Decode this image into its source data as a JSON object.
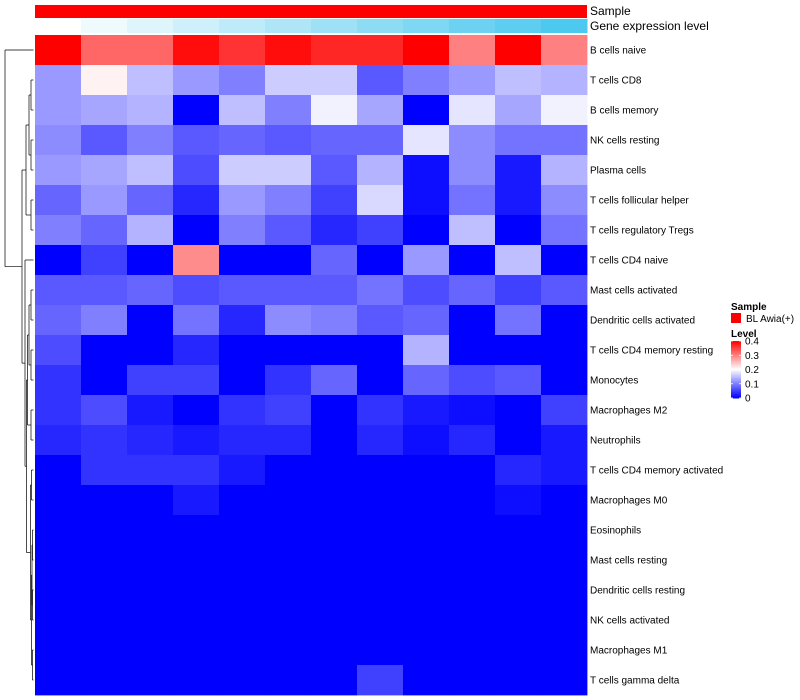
{
  "chart_data": {
    "type": "heatmap",
    "title": "",
    "annotations": [
      {
        "label": "Sample",
        "kind": "categorical",
        "color": "#ff0000"
      },
      {
        "label": "Gene expression level",
        "kind": "gradient",
        "low_color": "#ffffff",
        "high_color": "#4dc8ee"
      }
    ],
    "rows": [
      "B cells naive",
      "T cells CD8",
      "B cells memory",
      "NK cells resting",
      "Plasma cells",
      "T cells follicular helper",
      "T cells regulatory  Tregs",
      "T cells CD4 naive",
      "Mast cells activated",
      "Dendritic cells activated",
      "T cells CD4 memory resting",
      "Monocytes",
      "Macrophages M2",
      "Neutrophils",
      "T cells CD4 memory activated",
      "Macrophages M0",
      "Eosinophils",
      "Mast cells resting",
      "Dendritic cells resting",
      "NK cells activated",
      "Macrophages M1",
      "T cells gamma delta"
    ],
    "n_columns": 12,
    "values": [
      [
        0.4,
        0.32,
        0.32,
        0.39,
        0.36,
        0.39,
        0.37,
        0.37,
        0.4,
        0.3,
        0.4,
        0.3
      ],
      [
        0.12,
        0.21,
        0.15,
        0.12,
        0.1,
        0.16,
        0.16,
        0.07,
        0.1,
        0.12,
        0.15,
        0.14
      ],
      [
        0.12,
        0.13,
        0.14,
        0.0,
        0.15,
        0.1,
        0.19,
        0.13,
        0.0,
        0.18,
        0.13,
        0.19
      ],
      [
        0.11,
        0.07,
        0.1,
        0.07,
        0.08,
        0.07,
        0.08,
        0.08,
        0.18,
        0.11,
        0.09,
        0.09
      ],
      [
        0.12,
        0.13,
        0.15,
        0.06,
        0.16,
        0.16,
        0.07,
        0.14,
        0.01,
        0.11,
        0.02,
        0.14
      ],
      [
        0.08,
        0.12,
        0.08,
        0.03,
        0.12,
        0.1,
        0.05,
        0.17,
        0.01,
        0.09,
        0.02,
        0.11
      ],
      [
        0.1,
        0.08,
        0.14,
        0.0,
        0.1,
        0.07,
        0.03,
        0.05,
        0.0,
        0.15,
        0.0,
        0.09
      ],
      [
        0.0,
        0.05,
        0.0,
        0.29,
        0.0,
        0.0,
        0.08,
        0.0,
        0.12,
        0.0,
        0.15,
        0.0
      ],
      [
        0.07,
        0.07,
        0.08,
        0.06,
        0.07,
        0.07,
        0.07,
        0.09,
        0.06,
        0.08,
        0.05,
        0.07
      ],
      [
        0.08,
        0.1,
        0.0,
        0.09,
        0.03,
        0.11,
        0.1,
        0.07,
        0.08,
        0.0,
        0.09,
        0.0
      ],
      [
        0.06,
        0.0,
        0.0,
        0.03,
        0.0,
        0.0,
        0.0,
        0.0,
        0.14,
        0.0,
        0.0,
        0.0
      ],
      [
        0.04,
        0.0,
        0.05,
        0.05,
        0.0,
        0.04,
        0.08,
        0.0,
        0.08,
        0.06,
        0.07,
        0.0
      ],
      [
        0.04,
        0.06,
        0.02,
        0.0,
        0.04,
        0.05,
        0.0,
        0.04,
        0.02,
        0.01,
        0.0,
        0.05
      ],
      [
        0.03,
        0.04,
        0.03,
        0.02,
        0.03,
        0.03,
        0.0,
        0.03,
        0.01,
        0.03,
        0.0,
        0.02
      ],
      [
        0.0,
        0.04,
        0.04,
        0.04,
        0.02,
        0.0,
        0.0,
        0.0,
        0.0,
        0.0,
        0.03,
        0.02
      ],
      [
        0.0,
        0.0,
        0.0,
        0.02,
        0.0,
        0.0,
        0.0,
        0.0,
        0.0,
        0.0,
        0.01,
        0.0
      ],
      [
        0.0,
        0.0,
        0.0,
        0.0,
        0.0,
        0.0,
        0.0,
        0.0,
        0.0,
        0.0,
        0.0,
        0.0
      ],
      [
        0.0,
        0.0,
        0.0,
        0.0,
        0.0,
        0.0,
        0.0,
        0.0,
        0.0,
        0.0,
        0.0,
        0.0
      ],
      [
        0.0,
        0.0,
        0.0,
        0.0,
        0.0,
        0.0,
        0.0,
        0.0,
        0.0,
        0.0,
        0.0,
        0.0
      ],
      [
        0.0,
        0.0,
        0.0,
        0.0,
        0.0,
        0.0,
        0.0,
        0.0,
        0.0,
        0.0,
        0.0,
        0.0
      ],
      [
        0.0,
        0.0,
        0.0,
        0.0,
        0.0,
        0.0,
        0.0,
        0.0,
        0.0,
        0.0,
        0.0,
        0.0
      ],
      [
        0.0,
        0.0,
        0.0,
        0.0,
        0.0,
        0.0,
        0.0,
        0.05,
        0.0,
        0.0,
        0.0,
        0.0
      ]
    ],
    "color_scale": {
      "low": "#0000ff",
      "mid": "#ffffff",
      "high": "#ff0000",
      "domain": [
        0,
        0.4
      ]
    },
    "legend": {
      "sample_title": "Sample",
      "sample_entry": "BL Awia(+)",
      "sample_color": "#ff0000",
      "level_title": "Level",
      "level_ticks": [
        "0.4",
        "0.3",
        "0.2",
        "0.1",
        "0"
      ],
      "level_tick_values": [
        0.4,
        0.3,
        0.2,
        0.1,
        0
      ]
    },
    "row_dendrogram": true
  }
}
